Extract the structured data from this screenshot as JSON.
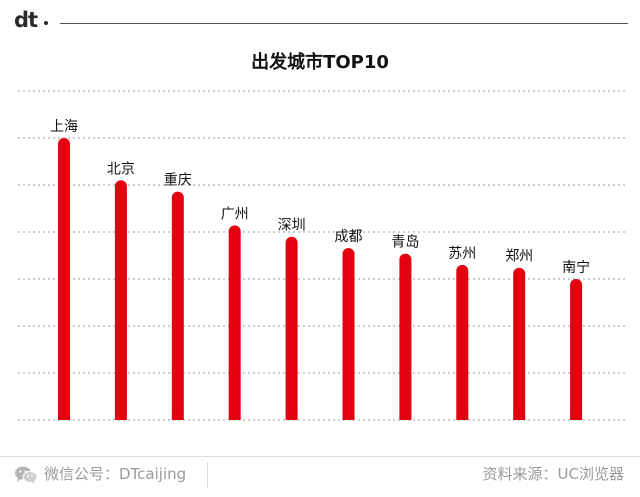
{
  "brand": {
    "logo_text": "dt"
  },
  "chart_data": {
    "type": "bar",
    "title": "出发城市TOP10",
    "categories": [
      "上海",
      "北京",
      "重庆",
      "广州",
      "深圳",
      "成都",
      "青岛",
      "苏州",
      "郑州",
      "南宁"
    ],
    "values": [
      100,
      85,
      81,
      69,
      65,
      61,
      59,
      55,
      54,
      50
    ],
    "ylim": [
      0,
      100
    ],
    "grid": true,
    "bar_color": "#e3000f"
  },
  "footer": {
    "wechat_text": "微信公号：DTcaijing",
    "source_text": "资料来源：UC浏览器"
  }
}
